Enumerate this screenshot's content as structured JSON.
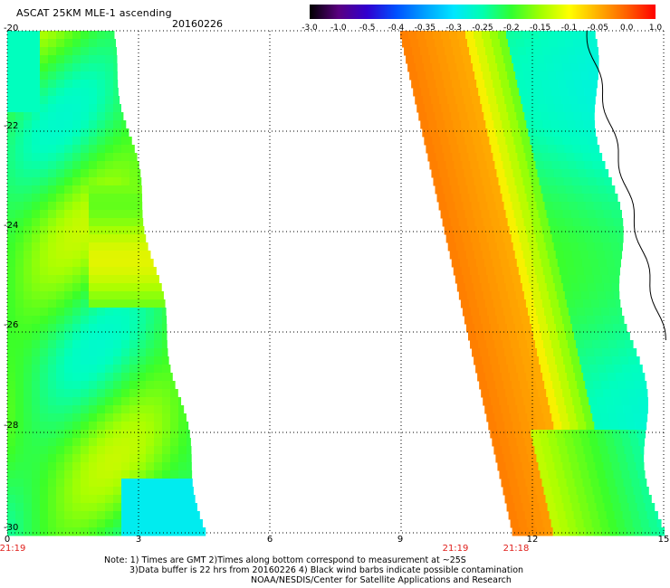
{
  "header": {
    "title": "ASCAT 25KM MLE-1 ascending",
    "date": "20160226"
  },
  "colorbar": {
    "colors": [
      "#000000",
      "#5a0080",
      "#3000d0",
      "#0050ff",
      "#00a0ff",
      "#00e6ff",
      "#00ffb0",
      "#30ff30",
      "#a0ff00",
      "#ffff00",
      "#ffb000",
      "#ff6000",
      "#ff0000"
    ],
    "ticks": [
      "-3.0",
      "-1.0",
      "-0.5",
      "-0.4",
      "-0.35",
      "-0.3",
      "-0.25",
      "-0.2",
      "-0.15",
      "-0.1",
      "-0.05",
      "0.0",
      "1.0"
    ]
  },
  "map": {
    "lon_range": [
      0,
      15
    ],
    "lat_range": [
      -20,
      -30
    ],
    "lat_labels": [
      "-20",
      "-22",
      "-24",
      "-26",
      "-28",
      "-30"
    ],
    "lon_labels": [
      "0",
      "3",
      "6",
      "9",
      "12",
      "15"
    ],
    "swath_times": [
      {
        "label": "21:19",
        "lon": 0
      },
      {
        "label": "21:19",
        "lon": 10.0
      },
      {
        "label": "21:18",
        "lon": 11.4
      }
    ]
  },
  "notes": {
    "line1": "Note: 1) Times are GMT 2)Times along bottom correspond to measurement at ~25S",
    "line2": "3)Data buffer is 22 hrs from 20160226 4) Black wind barbs indicate possible contamination",
    "line3": "NOAA/NESDIS/Center for Satellite Applications and Research"
  }
}
